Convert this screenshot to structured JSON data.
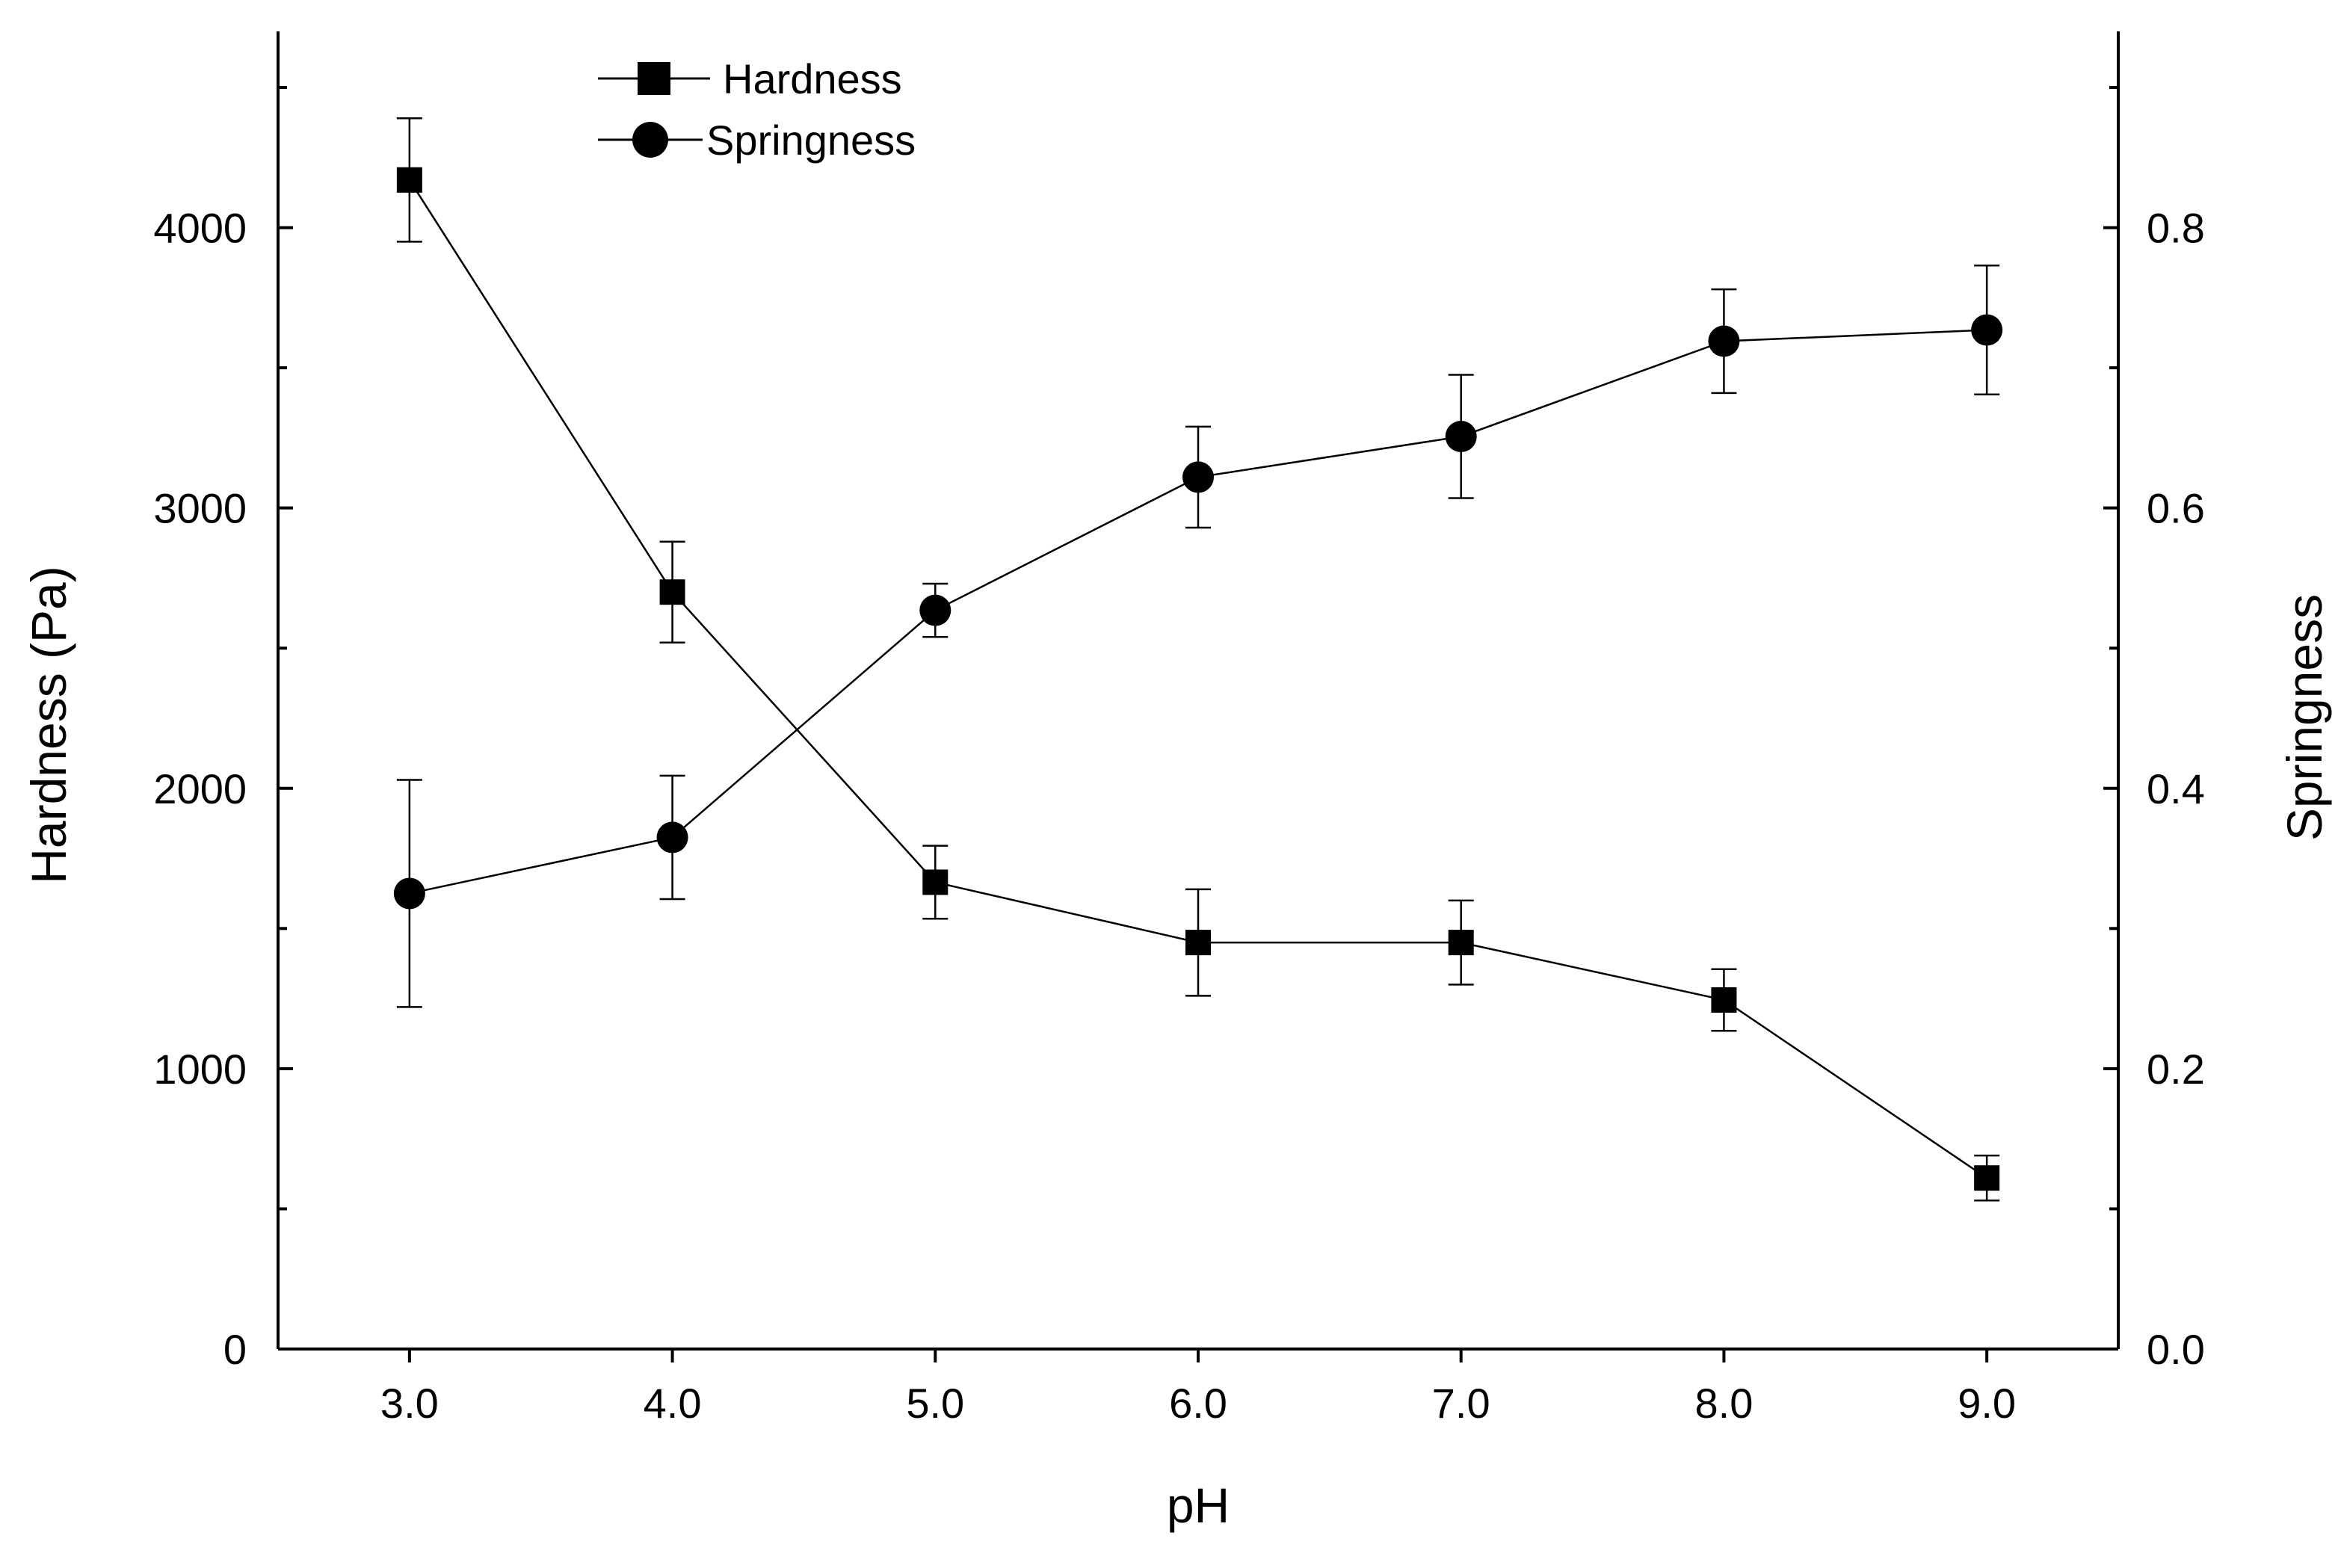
{
  "chart_data": {
    "type": "line",
    "title": "",
    "xlabel": "pH",
    "ylabel_left": "Hardness (Pa)",
    "ylabel_right": "Springness",
    "x": [
      3.0,
      4.0,
      5.0,
      6.0,
      7.0,
      8.0,
      9.0
    ],
    "x_tick_labels": [
      "3.0",
      "4.0",
      "5.0",
      "6.0",
      "7.0",
      "8.0",
      "9.0"
    ],
    "xlim": [
      2.5,
      9.5
    ],
    "ylim_left": [
      0,
      4700
    ],
    "yticks_left": [
      0,
      1000,
      2000,
      3000,
      4000
    ],
    "y_tick_labels_left": [
      "0",
      "1000",
      "2000",
      "3000",
      "4000"
    ],
    "ylim_right": [
      0.0,
      0.94
    ],
    "yticks_right": [
      0.0,
      0.2,
      0.4,
      0.6,
      0.8
    ],
    "y_tick_labels_right": [
      "0.0",
      "0.2",
      "0.4",
      "0.6",
      "0.8"
    ],
    "grid": false,
    "legend_position": "top-left",
    "series": [
      {
        "name": "Hardness",
        "axis": "left",
        "marker": "square",
        "values": [
          4170,
          2700,
          1665,
          1450,
          1450,
          1245,
          610
        ],
        "errors": [
          220,
          180,
          130,
          190,
          150,
          110,
          80
        ]
      },
      {
        "name": "Springness",
        "axis": "right",
        "marker": "circle",
        "values": [
          0.325,
          0.365,
          0.527,
          0.622,
          0.651,
          0.719,
          0.727
        ],
        "errors": [
          0.081,
          0.044,
          0.019,
          0.036,
          0.044,
          0.037,
          0.046
        ]
      }
    ],
    "colors": {
      "line": "#000000",
      "marker": "#000000",
      "background": "#ffffff"
    }
  }
}
